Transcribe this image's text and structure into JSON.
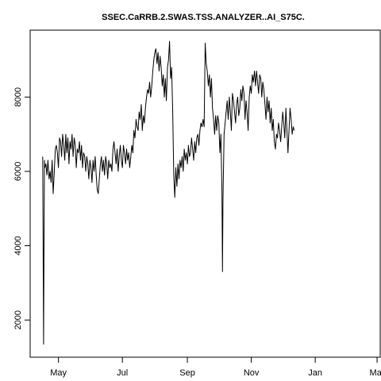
{
  "chart_data": {
    "type": "line",
    "title": "SSEC.CaRRB.2.SWAS.TSS.ANALYZER..AI_S75C.",
    "xlabel": "",
    "ylabel": "",
    "x_ticks": [
      {
        "label": "May",
        "day": 15
      },
      {
        "label": "Jul",
        "day": 76
      },
      {
        "label": "Sep",
        "day": 138
      },
      {
        "label": "Nov",
        "day": 199
      },
      {
        "label": "Jan",
        "day": 260
      },
      {
        "label": "Mar",
        "day": 319
      }
    ],
    "y_ticks": [
      2000,
      4000,
      6000,
      8000
    ],
    "xlim": [
      -12,
      322
    ],
    "ylim": [
      1000,
      9800
    ],
    "series": [
      {
        "color": "#000000",
        "points": [
          [
            0,
            6400
          ],
          [
            0.4,
            3700
          ],
          [
            0.8,
            1350
          ],
          [
            1.2,
            3800
          ],
          [
            1.6,
            6300
          ],
          [
            2,
            6100
          ],
          [
            3,
            6200
          ],
          [
            4,
            5900
          ],
          [
            5,
            6300
          ],
          [
            6,
            5800
          ],
          [
            7,
            6000
          ],
          [
            8,
            5700
          ],
          [
            9,
            6300
          ],
          [
            10,
            5400
          ],
          [
            11,
            6000
          ],
          [
            12,
            6600
          ],
          [
            13,
            6700
          ],
          [
            14,
            6500
          ],
          [
            15,
            6100
          ],
          [
            16,
            6900
          ],
          [
            17,
            6800
          ],
          [
            18,
            6400
          ],
          [
            19,
            7000
          ],
          [
            20,
            6700
          ],
          [
            21,
            6300
          ],
          [
            22,
            7000
          ],
          [
            23,
            6500
          ],
          [
            24,
            6900
          ],
          [
            25,
            6200
          ],
          [
            26,
            6800
          ],
          [
            27,
            6600
          ],
          [
            28,
            7000
          ],
          [
            29,
            6400
          ],
          [
            30,
            6900
          ],
          [
            31,
            6700
          ],
          [
            32,
            6100
          ],
          [
            33,
            6600
          ],
          [
            34,
            6500
          ],
          [
            35,
            6800
          ],
          [
            36,
            6300
          ],
          [
            37,
            6700
          ],
          [
            38,
            6100
          ],
          [
            39,
            6500
          ],
          [
            40,
            6400
          ],
          [
            41,
            6000
          ],
          [
            42,
            6400
          ],
          [
            43,
            6200
          ],
          [
            44,
            5800
          ],
          [
            45,
            6300
          ],
          [
            46,
            6100
          ],
          [
            47,
            5700
          ],
          [
            48,
            6300
          ],
          [
            49,
            6000
          ],
          [
            50,
            6400
          ],
          [
            51,
            5900
          ],
          [
            52,
            5500
          ],
          [
            53,
            5400
          ],
          [
            54,
            5800
          ],
          [
            55,
            6200
          ],
          [
            56,
            6400
          ],
          [
            57,
            6000
          ],
          [
            58,
            6300
          ],
          [
            59,
            5900
          ],
          [
            60,
            6400
          ],
          [
            61,
            6200
          ],
          [
            62,
            5800
          ],
          [
            63,
            6300
          ],
          [
            64,
            6100
          ],
          [
            65,
            6200
          ],
          [
            66,
            6000
          ],
          [
            67,
            6600
          ],
          [
            68,
            6800
          ],
          [
            69,
            6500
          ],
          [
            70,
            6200
          ],
          [
            71,
            6600
          ],
          [
            72,
            6000
          ],
          [
            73,
            6400
          ],
          [
            74,
            6700
          ],
          [
            75,
            6300
          ],
          [
            76,
            6100
          ],
          [
            77,
            6700
          ],
          [
            78,
            6500
          ],
          [
            79,
            6200
          ],
          [
            80,
            6600
          ],
          [
            81,
            6300
          ],
          [
            82,
            6500
          ],
          [
            83,
            6100
          ],
          [
            84,
            6400
          ],
          [
            85,
            6700
          ],
          [
            86,
            6500
          ],
          [
            87,
            7100
          ],
          [
            88,
            6900
          ],
          [
            89,
            7400
          ],
          [
            90,
            7200
          ],
          [
            91,
            7100
          ],
          [
            92,
            7600
          ],
          [
            93,
            7400
          ],
          [
            94,
            7800
          ],
          [
            95,
            7100
          ],
          [
            96,
            7500
          ],
          [
            97,
            7300
          ],
          [
            98,
            7700
          ],
          [
            99,
            8000
          ],
          [
            100,
            8200
          ],
          [
            101,
            8100
          ],
          [
            102,
            8400
          ],
          [
            103,
            8000
          ],
          [
            104,
            8300
          ],
          [
            105,
            8700
          ],
          [
            106,
            9000
          ],
          [
            107,
            9200
          ],
          [
            108,
            9300
          ],
          [
            109,
            8900
          ],
          [
            110,
            9200
          ],
          [
            111,
            8700
          ],
          [
            112,
            9100
          ],
          [
            113,
            8800
          ],
          [
            114,
            8300
          ],
          [
            115,
            8600
          ],
          [
            116,
            8000
          ],
          [
            117,
            8500
          ],
          [
            118,
            7900
          ],
          [
            119,
            8800
          ],
          [
            120,
            9000
          ],
          [
            121,
            9500
          ],
          [
            122,
            8500
          ],
          [
            123,
            8800
          ],
          [
            124,
            7600
          ],
          [
            125,
            5900
          ],
          [
            126,
            5300
          ],
          [
            127,
            6100
          ],
          [
            128,
            5600
          ],
          [
            129,
            6200
          ],
          [
            130,
            5800
          ],
          [
            131,
            6300
          ],
          [
            132,
            6100
          ],
          [
            133,
            6400
          ],
          [
            134,
            6000
          ],
          [
            135,
            6600
          ],
          [
            136,
            6300
          ],
          [
            137,
            6500
          ],
          [
            138,
            6200
          ],
          [
            139,
            6700
          ],
          [
            140,
            6400
          ],
          [
            141,
            6500
          ],
          [
            142,
            6900
          ],
          [
            143,
            6600
          ],
          [
            144,
            6300
          ],
          [
            145,
            6800
          ],
          [
            146,
            6500
          ],
          [
            147,
            6900
          ],
          [
            148,
            7000
          ],
          [
            149,
            6700
          ],
          [
            150,
            7100
          ],
          [
            151,
            7300
          ],
          [
            152,
            7200
          ],
          [
            153,
            7400
          ],
          [
            154,
            7200
          ],
          [
            155,
            9450
          ],
          [
            156,
            8900
          ],
          [
            157,
            8700
          ],
          [
            158,
            8300
          ],
          [
            159,
            8600
          ],
          [
            160,
            8000
          ],
          [
            161,
            8500
          ],
          [
            162,
            7700
          ],
          [
            163,
            7400
          ],
          [
            164,
            7000
          ],
          [
            165,
            7500
          ],
          [
            166,
            7100
          ],
          [
            167,
            7500
          ],
          [
            168,
            7300
          ],
          [
            169,
            6500
          ],
          [
            170,
            7000
          ],
          [
            171,
            5500
          ],
          [
            171.5,
            3300
          ],
          [
            172,
            5200
          ],
          [
            173,
            7000
          ],
          [
            174,
            7300
          ],
          [
            175,
            7600
          ],
          [
            176,
            7900
          ],
          [
            177,
            7400
          ],
          [
            178,
            8000
          ],
          [
            179,
            7600
          ],
          [
            180,
            7100
          ],
          [
            181,
            8100
          ],
          [
            182,
            7900
          ],
          [
            183,
            7600
          ],
          [
            184,
            7300
          ],
          [
            185,
            7800
          ],
          [
            186,
            8000
          ],
          [
            187,
            7500
          ],
          [
            188,
            7700
          ],
          [
            189,
            8200
          ],
          [
            190,
            7900
          ],
          [
            191,
            8300
          ],
          [
            192,
            8100
          ],
          [
            193,
            7400
          ],
          [
            194,
            7900
          ],
          [
            195,
            7600
          ],
          [
            196,
            7100
          ],
          [
            197,
            8000
          ],
          [
            198,
            8300
          ],
          [
            199,
            8100
          ],
          [
            200,
            8600
          ],
          [
            201,
            8400
          ],
          [
            202,
            8700
          ],
          [
            203,
            8300
          ],
          [
            204,
            8700
          ],
          [
            205,
            8400
          ],
          [
            206,
            8100
          ],
          [
            207,
            8600
          ],
          [
            208,
            8500
          ],
          [
            209,
            8000
          ],
          [
            210,
            8400
          ],
          [
            211,
            8200
          ],
          [
            212,
            7800
          ],
          [
            213,
            7400
          ],
          [
            214,
            8000
          ],
          [
            215,
            7600
          ],
          [
            216,
            7900
          ],
          [
            217,
            7300
          ],
          [
            218,
            7700
          ],
          [
            219,
            7100
          ],
          [
            220,
            7400
          ],
          [
            221,
            6800
          ],
          [
            222,
            6600
          ],
          [
            223,
            7000
          ],
          [
            224,
            6900
          ],
          [
            225,
            7300
          ],
          [
            226,
            7100
          ],
          [
            227,
            6800
          ],
          [
            228,
            7200
          ],
          [
            229,
            7600
          ],
          [
            230,
            7300
          ],
          [
            231,
            6900
          ],
          [
            232,
            7700
          ],
          [
            233,
            7100
          ],
          [
            234,
            6500
          ],
          [
            235,
            7100
          ],
          [
            236,
            7700
          ],
          [
            237,
            7400
          ],
          [
            238,
            7000
          ],
          [
            239,
            7200
          ],
          [
            240,
            7100
          ]
        ]
      }
    ]
  }
}
